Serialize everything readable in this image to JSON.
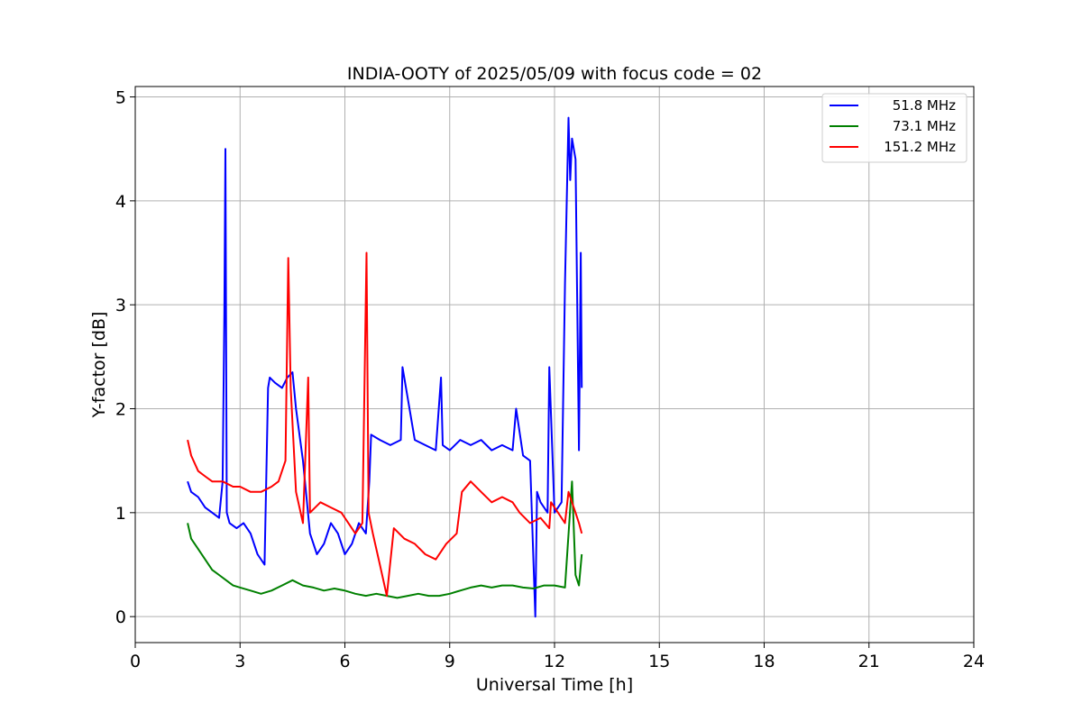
{
  "chart_data": {
    "type": "line",
    "title": "INDIA-OOTY of 2025/05/09 with focus code = 02",
    "xlabel": "Universal Time [h]",
    "ylabel": "Y-factor [dB]",
    "xlim": [
      0,
      24
    ],
    "ylim": [
      -0.25,
      5.1
    ],
    "xticks": [
      0,
      3,
      6,
      9,
      12,
      15,
      18,
      21,
      24
    ],
    "yticks": [
      0,
      1,
      2,
      3,
      4,
      5
    ],
    "grid": true,
    "legend_position": "top-right",
    "series": [
      {
        "name": "51.8 MHz",
        "color": "#0000ff",
        "x": [
          1.5,
          1.6,
          1.8,
          2.0,
          2.2,
          2.4,
          2.5,
          2.55,
          2.58,
          2.62,
          2.7,
          2.9,
          3.1,
          3.3,
          3.5,
          3.7,
          3.8,
          3.85,
          4.0,
          4.2,
          4.35,
          4.5,
          4.6,
          4.8,
          5.0,
          5.2,
          5.4,
          5.6,
          5.8,
          6.0,
          6.2,
          6.4,
          6.6,
          6.7,
          6.75,
          7.0,
          7.3,
          7.6,
          7.65,
          8.0,
          8.3,
          8.6,
          8.75,
          8.8,
          9.0,
          9.3,
          9.6,
          9.9,
          10.2,
          10.5,
          10.8,
          10.9,
          11.1,
          11.3,
          11.45,
          11.5,
          11.6,
          11.8,
          11.85,
          12.0,
          12.2,
          12.3,
          12.4,
          12.45,
          12.5,
          12.6,
          12.7,
          12.75,
          12.78
        ],
        "y": [
          1.3,
          1.2,
          1.15,
          1.05,
          1.0,
          0.95,
          1.3,
          2.9,
          4.5,
          1.0,
          0.9,
          0.85,
          0.9,
          0.8,
          0.6,
          0.5,
          2.2,
          2.3,
          2.25,
          2.2,
          2.3,
          2.35,
          2.0,
          1.5,
          0.8,
          0.6,
          0.7,
          0.9,
          0.8,
          0.6,
          0.7,
          0.9,
          0.8,
          1.3,
          1.75,
          1.7,
          1.65,
          1.7,
          2.4,
          1.7,
          1.65,
          1.6,
          2.3,
          1.65,
          1.6,
          1.7,
          1.65,
          1.7,
          1.6,
          1.65,
          1.6,
          2.0,
          1.55,
          1.5,
          0.0,
          1.2,
          1.1,
          1.0,
          2.4,
          1.0,
          1.1,
          3.2,
          4.8,
          4.2,
          4.6,
          4.4,
          1.6,
          3.5,
          2.2
        ]
      },
      {
        "name": "73.1 MHz",
        "color": "#008000",
        "x": [
          1.5,
          1.6,
          1.8,
          2.0,
          2.2,
          2.4,
          2.6,
          2.8,
          3.0,
          3.3,
          3.6,
          3.9,
          4.2,
          4.5,
          4.8,
          5.1,
          5.4,
          5.7,
          6.0,
          6.3,
          6.6,
          6.9,
          7.2,
          7.5,
          7.8,
          8.1,
          8.4,
          8.7,
          9.0,
          9.3,
          9.6,
          9.9,
          10.2,
          10.5,
          10.8,
          11.1,
          11.4,
          11.7,
          12.0,
          12.3,
          12.5,
          12.6,
          12.7,
          12.78
        ],
        "y": [
          0.9,
          0.75,
          0.65,
          0.55,
          0.45,
          0.4,
          0.35,
          0.3,
          0.28,
          0.25,
          0.22,
          0.25,
          0.3,
          0.35,
          0.3,
          0.28,
          0.25,
          0.27,
          0.25,
          0.22,
          0.2,
          0.22,
          0.2,
          0.18,
          0.2,
          0.22,
          0.2,
          0.2,
          0.22,
          0.25,
          0.28,
          0.3,
          0.28,
          0.3,
          0.3,
          0.28,
          0.27,
          0.3,
          0.3,
          0.28,
          1.3,
          0.4,
          0.3,
          0.6
        ]
      },
      {
        "name": "151.2 MHz",
        "color": "#ff0000",
        "x": [
          1.5,
          1.6,
          1.8,
          2.0,
          2.2,
          2.5,
          2.8,
          3.0,
          3.3,
          3.6,
          3.9,
          4.1,
          4.3,
          4.38,
          4.45,
          4.6,
          4.8,
          4.95,
          5.0,
          5.3,
          5.6,
          5.9,
          6.1,
          6.3,
          6.5,
          6.62,
          6.68,
          6.8,
          7.0,
          7.2,
          7.4,
          7.7,
          8.0,
          8.3,
          8.6,
          8.9,
          9.2,
          9.35,
          9.6,
          9.9,
          10.2,
          10.5,
          10.8,
          11.0,
          11.3,
          11.6,
          11.85,
          11.9,
          12.1,
          12.3,
          12.4,
          12.5,
          12.6,
          12.7,
          12.78
        ],
        "y": [
          1.7,
          1.55,
          1.4,
          1.35,
          1.3,
          1.3,
          1.25,
          1.25,
          1.2,
          1.2,
          1.25,
          1.3,
          1.5,
          3.45,
          2.2,
          1.2,
          0.9,
          2.3,
          1.0,
          1.1,
          1.05,
          1.0,
          0.9,
          0.8,
          0.9,
          3.5,
          1.0,
          0.8,
          0.5,
          0.2,
          0.85,
          0.75,
          0.7,
          0.6,
          0.55,
          0.7,
          0.8,
          1.2,
          1.3,
          1.2,
          1.1,
          1.15,
          1.1,
          1.0,
          0.9,
          0.95,
          0.85,
          1.1,
          1.0,
          0.9,
          1.2,
          1.1,
          1.0,
          0.9,
          0.8
        ]
      }
    ]
  }
}
